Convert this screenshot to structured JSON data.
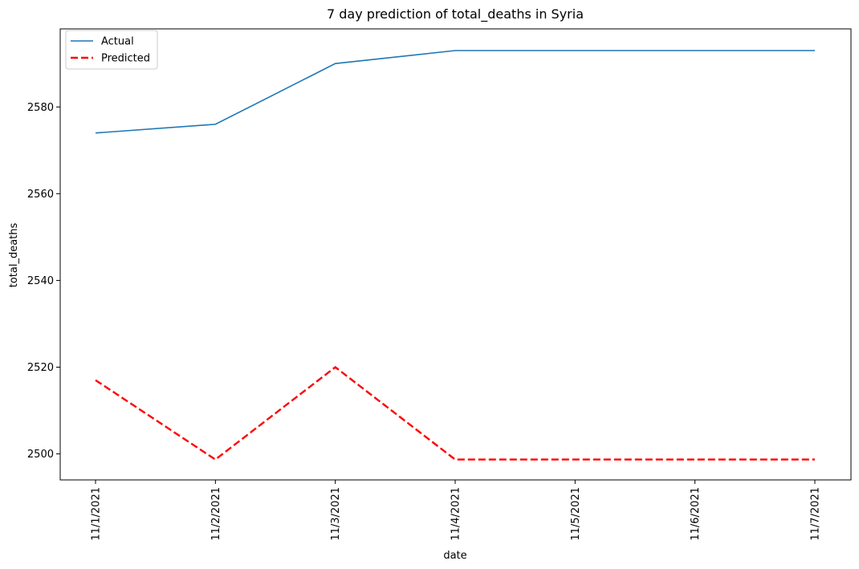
{
  "chart_data": {
    "type": "line",
    "title": "7 day prediction of total_deaths in Syria",
    "xlabel": "date",
    "ylabel": "total_deaths",
    "categories": [
      "11/1/2021",
      "11/2/2021",
      "11/3/2021",
      "11/4/2021",
      "11/5/2021",
      "11/6/2021",
      "11/7/2021"
    ],
    "series": [
      {
        "name": "Actual",
        "color": "#1f77b4",
        "style": "solid",
        "values": [
          2574,
          2576,
          2590,
          2593,
          2593,
          2593,
          2593
        ]
      },
      {
        "name": "Predicted",
        "color": "#ff0000",
        "style": "dashed",
        "values": [
          2517,
          2498.7,
          2520,
          2498.7,
          2498.7,
          2498.7,
          2498.7
        ]
      }
    ],
    "ylim": [
      2494,
      2598
    ],
    "yticks": [
      "2500",
      "2520",
      "2540",
      "2560",
      "2580"
    ],
    "grid": false,
    "legend_position": "top-left"
  }
}
